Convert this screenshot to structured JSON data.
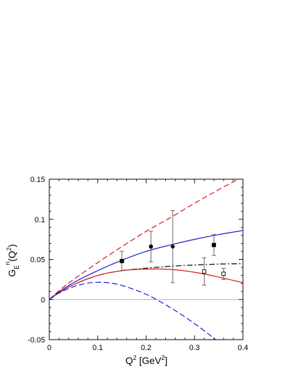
{
  "chart_data": {
    "type": "line",
    "xlabel": {
      "base": "Q",
      "sup": "2",
      "unit_open": " [GeV",
      "unit_sup": "2",
      "unit_close": "]"
    },
    "ylabel": {
      "base": "G",
      "sub": "E",
      "sup": "n",
      "arg_open": "(Q",
      "arg_sup": "2",
      "arg_close": ")"
    },
    "xlim": [
      0,
      0.4
    ],
    "ylim": [
      -0.05,
      0.15
    ],
    "x_ticks": [
      0,
      0.1,
      0.2,
      0.3,
      0.4
    ],
    "y_ticks": [
      -0.05,
      0,
      0.05,
      0.1,
      0.15
    ],
    "x_tick_labels": [
      "0",
      "0.1",
      "0.2",
      "0.3",
      "0.4"
    ],
    "y_tick_labels": [
      "-0.05",
      "0",
      "0.05",
      "0.1",
      "0.15"
    ],
    "grid": false,
    "zero_line": true,
    "colors": {
      "red": "#d9141e",
      "blue": "#1a1ad2",
      "black": "#000000",
      "zero": "#999999",
      "errorbar": "#555555"
    },
    "series": [
      {
        "color": "#d9141e",
        "dash": "dashed",
        "x": [
          0,
          0.02,
          0.05,
          0.1,
          0.15,
          0.2,
          0.25,
          0.3,
          0.35,
          0.4
        ],
        "y": [
          0,
          0.011,
          0.025,
          0.046,
          0.066,
          0.085,
          0.102,
          0.12,
          0.137,
          0.153
        ]
      },
      {
        "color": "#1a1ad2",
        "dash": "solid",
        "x": [
          0,
          0.02,
          0.05,
          0.1,
          0.15,
          0.2,
          0.25,
          0.3,
          0.35,
          0.4
        ],
        "y": [
          0,
          0.0095,
          0.021,
          0.036,
          0.049,
          0.06,
          0.068,
          0.075,
          0.081,
          0.086
        ]
      },
      {
        "color": "#000000",
        "dash": "dashdot",
        "x": [
          0,
          0.02,
          0.05,
          0.1,
          0.15,
          0.2,
          0.25,
          0.3,
          0.35,
          0.4
        ],
        "y": [
          0,
          0.0085,
          0.0185,
          0.03,
          0.036,
          0.039,
          0.0415,
          0.043,
          0.0442,
          0.0447
        ]
      },
      {
        "color": "#d9141e",
        "dash": "solid",
        "x": [
          0,
          0.02,
          0.05,
          0.1,
          0.15,
          0.2,
          0.25,
          0.3,
          0.35,
          0.4
        ],
        "y": [
          0,
          0.0085,
          0.0185,
          0.03,
          0.036,
          0.038,
          0.0375,
          0.034,
          0.028,
          0.021
        ]
      },
      {
        "color": "#1a1ad2",
        "dash": "dashed",
        "x": [
          0,
          0.02,
          0.05,
          0.08,
          0.1,
          0.12,
          0.15,
          0.2,
          0.25,
          0.3,
          0.35,
          0.4
        ],
        "y": [
          0,
          0.008,
          0.016,
          0.0205,
          0.0215,
          0.021,
          0.0175,
          0.0065,
          -0.01,
          -0.03,
          -0.053,
          -0.078
        ]
      }
    ],
    "points": [
      {
        "x": 0.15,
        "y": 0.048,
        "err": 0.012,
        "marker": "filled-square"
      },
      {
        "x": 0.21,
        "y": 0.066,
        "err": 0.019,
        "marker": "filled-circle"
      },
      {
        "x": 0.255,
        "y": 0.066,
        "err": 0.045,
        "marker": "filled-diamond"
      },
      {
        "x": 0.34,
        "y": 0.068,
        "err": 0.013,
        "marker": "filled-square"
      },
      {
        "x": 0.32,
        "y": 0.035,
        "err": 0.017,
        "marker": "open-square"
      },
      {
        "x": 0.36,
        "y": 0.032,
        "err": 0.007,
        "marker": "open-square"
      }
    ]
  }
}
